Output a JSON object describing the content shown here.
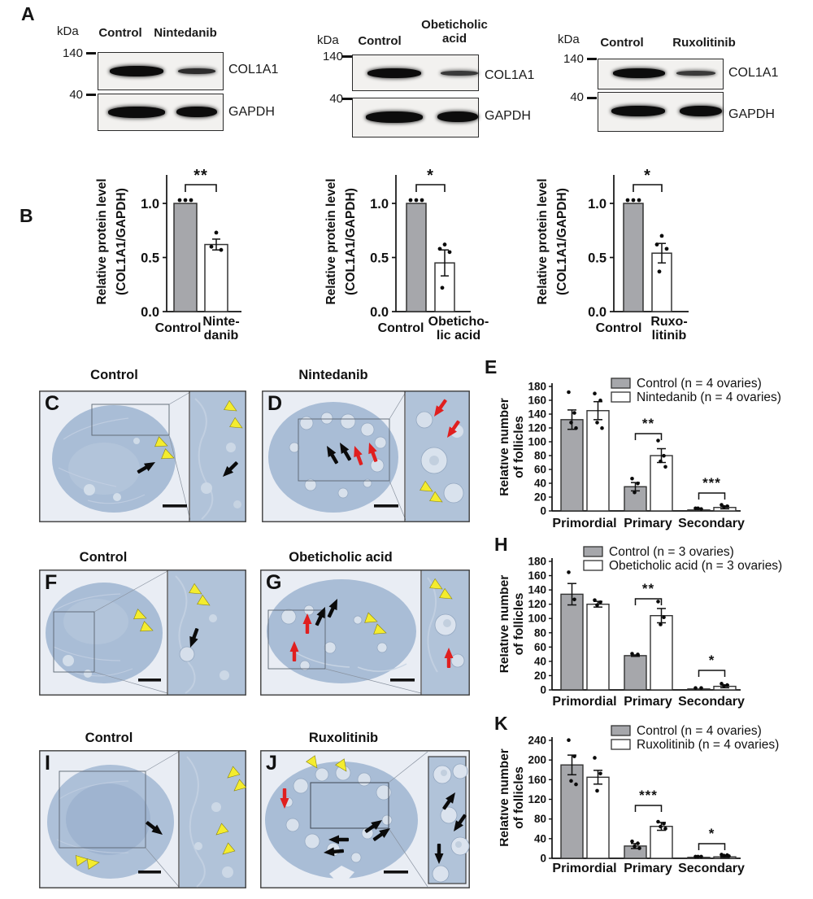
{
  "letters": {
    "a": "A",
    "b": "B",
    "e": "E",
    "h": "H",
    "k": "K"
  },
  "panel_a": {
    "groups": [
      {
        "kda": "kDa",
        "lane1": "Control",
        "lane2": "Nintedanib",
        "marker1": "140",
        "marker2": "40",
        "blot1": "COL1A1",
        "blot2": "GAPDH"
      },
      {
        "kda": "kDa",
        "lane1": "Control",
        "lane2": "Obeticholic acid",
        "marker1": "140",
        "marker2": "40",
        "blot1": "COL1A1",
        "blot2": "GAPDH"
      },
      {
        "kda": "kDa",
        "lane1": "Control",
        "lane2": "Ruxolitinib",
        "marker1": "140",
        "marker2": "40",
        "blot1": "COL1A1",
        "blot2": "GAPDH"
      }
    ]
  },
  "histology": {
    "rows": [
      {
        "left": {
          "letter": "C",
          "title": "Control"
        },
        "right": {
          "letter": "D",
          "title": "Nintedanib"
        }
      },
      {
        "left": {
          "letter": "F",
          "title": "Control"
        },
        "right": {
          "letter": "G",
          "title": "Obeticholic acid"
        }
      },
      {
        "left": {
          "letter": "I",
          "title": "Control"
        },
        "right": {
          "letter": "J",
          "title": "Ruxolitinib"
        }
      }
    ],
    "annotation_colors": {
      "black_arrow": "#0a0a0a",
      "red_arrow": "#e01f1f",
      "yellow_arrowhead": "#f4ec2e"
    },
    "stain_colors": {
      "background": "#e9edf4",
      "tissue": "#a9bdd6"
    }
  },
  "chart_data": [
    {
      "id": "B1",
      "type": "bar",
      "ylabel_lines": [
        "Relative protein level",
        "(COL1A1/GAPDH)"
      ],
      "yticks": [
        "0.0",
        "0.5",
        "1.0"
      ],
      "ylim": [
        0,
        1.25
      ],
      "categories": [
        "Control",
        "Nintedanib"
      ],
      "category_label_lines": [
        [
          "Control"
        ],
        [
          "Ninte-",
          "danib"
        ]
      ],
      "values": [
        1.0,
        0.62
      ],
      "errors": [
        0,
        0.05
      ],
      "dots": [
        [
          1.0,
          1.0,
          1.0
        ],
        [
          0.73,
          0.6,
          0.57
        ]
      ],
      "significance": "**",
      "bar_colors": [
        "#a6a7ab",
        "#ffffff"
      ],
      "grid": false
    },
    {
      "id": "B2",
      "type": "bar",
      "ylabel_lines": [
        "Relative protein level",
        "(COL1A1/GAPDH)"
      ],
      "yticks": [
        "0.0",
        "0.5",
        "1.0"
      ],
      "ylim": [
        0,
        1.25
      ],
      "categories": [
        "Control",
        "Obeticholic acid"
      ],
      "category_label_lines": [
        [
          "Control"
        ],
        [
          "Obeticho-",
          "lic acid"
        ]
      ],
      "values": [
        1.0,
        0.45
      ],
      "errors": [
        0,
        0.12
      ],
      "dots": [
        [
          1.0,
          1.0,
          1.0
        ],
        [
          0.62,
          0.58,
          0.55,
          0.22
        ]
      ],
      "significance": "*",
      "bar_colors": [
        "#a6a7ab",
        "#ffffff"
      ],
      "grid": false
    },
    {
      "id": "B3",
      "type": "bar",
      "ylabel_lines": [
        "Relative protein level",
        "(COL1A1/GAPDH)"
      ],
      "yticks": [
        "0.0",
        "0.5",
        "1.0"
      ],
      "ylim": [
        0,
        1.25
      ],
      "categories": [
        "Control",
        "Ruxolitinib"
      ],
      "category_label_lines": [
        [
          "Control"
        ],
        [
          "Ruxo-",
          "litinib"
        ]
      ],
      "values": [
        1.0,
        0.54
      ],
      "errors": [
        0,
        0.09
      ],
      "dots": [
        [
          1.0,
          1.0,
          1.0
        ],
        [
          0.7,
          0.62,
          0.58,
          0.37
        ]
      ],
      "significance": "*",
      "bar_colors": [
        "#a6a7ab",
        "#ffffff"
      ],
      "grid": false
    },
    {
      "id": "E",
      "type": "grouped_bar",
      "ylabel_lines": [
        "Relative number",
        "of follicles"
      ],
      "ylim": [
        0,
        180
      ],
      "ytick_step": 20,
      "categories": [
        "Primordial",
        "Primary",
        "Secondary"
      ],
      "series": [
        {
          "name": "Control (n = 4 ovaries)",
          "color": "#a6a7ab",
          "values": [
            132,
            35,
            1
          ],
          "errors": [
            14,
            6,
            0
          ],
          "dots": [
            [
              170,
              140,
              126,
              118
            ],
            [
              45,
              38,
              25
            ],
            [
              2,
              1,
              2
            ]
          ]
        },
        {
          "name": "Nintedanib (n = 4 ovaries)",
          "color": "#ffffff",
          "values": [
            145,
            80,
            5
          ],
          "errors": [
            13,
            10,
            2
          ],
          "dots": [
            [
              168,
              158,
              126,
              118
            ],
            [
              100,
              78,
              70,
              62
            ],
            [
              7,
              5,
              4
            ]
          ]
        }
      ],
      "significance": [
        null,
        "**",
        "***"
      ],
      "legend_position": "top-right",
      "grid": false
    },
    {
      "id": "H",
      "type": "grouped_bar",
      "ylabel_lines": [
        "Relative number",
        "of follicles"
      ],
      "ylim": [
        0,
        180
      ],
      "ytick_step": 20,
      "categories": [
        "Primordial",
        "Primary",
        "Secondary"
      ],
      "series": [
        {
          "name": "Control (n = 3 ovaries)",
          "color": "#a6a7ab",
          "values": [
            134,
            48,
            1
          ],
          "errors": [
            15,
            1,
            0
          ],
          "dots": [
            [
              163,
              125
            ],
            [
              49,
              48
            ],
            [
              1,
              1
            ]
          ]
        },
        {
          "name": "Obeticholic acid (n = 3 ovaries)",
          "color": "#ffffff",
          "values": [
            120,
            104,
            5
          ],
          "errors": [
            4,
            10,
            2
          ],
          "dots": [
            [
              124,
              121,
              117
            ],
            [
              122,
              100,
              90
            ],
            [
              7,
              5,
              4
            ]
          ]
        }
      ],
      "significance": [
        null,
        "**",
        "*"
      ],
      "legend_position": "top-right",
      "grid": false
    },
    {
      "id": "K",
      "type": "grouped_bar",
      "ylabel_lines": [
        "Relative number",
        "of follicles"
      ],
      "ylim": [
        0,
        240
      ],
      "ytick_step": 40,
      "categories": [
        "Primordial",
        "Primary",
        "Secondary"
      ],
      "series": [
        {
          "name": "Control (n = 4 ovaries)",
          "color": "#a6a7ab",
          "values": [
            190,
            25,
            1
          ],
          "errors": [
            20,
            5,
            0
          ],
          "dots": [
            [
              238,
              205,
              155,
              148
            ],
            [
              32,
              28,
              22,
              18
            ],
            [
              1,
              1,
              1
            ]
          ]
        },
        {
          "name": "Ruxolitinib (n = 4 ovaries)",
          "color": "#ffffff",
          "values": [
            165,
            65,
            3
          ],
          "errors": [
            14,
            8,
            1
          ],
          "dots": [
            [
              202,
              170,
              135
            ],
            [
              72,
              68,
              62,
              58
            ],
            [
              5,
              4,
              3,
              2
            ]
          ]
        }
      ],
      "significance": [
        null,
        "***",
        "*"
      ],
      "legend_position": "top-right",
      "grid": false
    }
  ]
}
